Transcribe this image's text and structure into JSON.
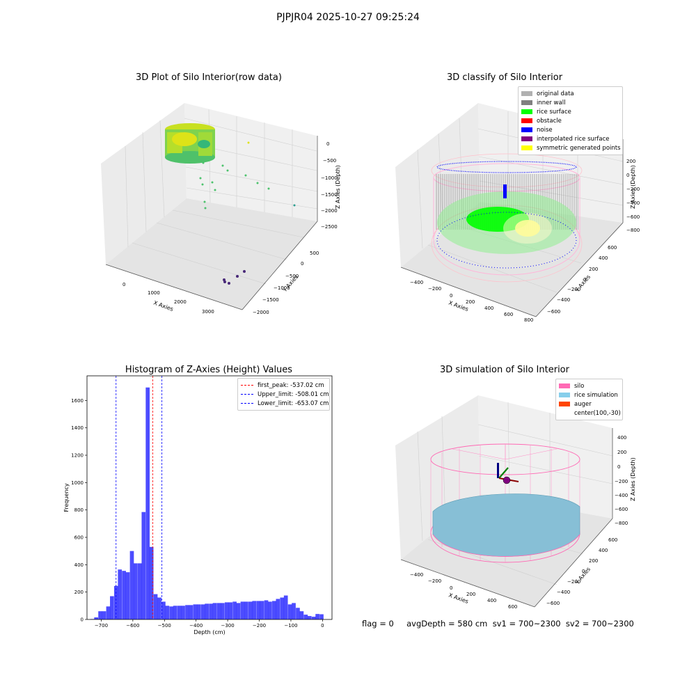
{
  "figure": {
    "suptitle": "PJPJR04 2025-10-27 09:25:24",
    "bottom_info": "flag = 0     avgDepth = 580 cm  sv1 = 700~2300  sv2 = 700~2300"
  },
  "chart_data": [
    {
      "type": "scatter",
      "title": "3D Plot of Silo Interior(row data)",
      "xlabel": "X Axies",
      "ylabel": "Y Axies",
      "zlabel": "Z Axies (Depth)",
      "x_ticks": [
        "0",
        "1000",
        "2000",
        "3000"
      ],
      "y_ticks": [
        "500",
        "0",
        "−500",
        "−1000",
        "−1500",
        "−2000"
      ],
      "z_ticks": [
        "0",
        "−500",
        "−1000",
        "−1500",
        "−2000",
        "−2500"
      ],
      "colormap": "viridis",
      "description_points": "dense cylindrical cluster of points near x≈500, sparse outlier points extending to x≈3500, z≈-2800"
    },
    {
      "type": "scatter",
      "title": "3D classify of Silo Interior",
      "xlabel": "X Axies",
      "ylabel": "Y Axies",
      "zlabel": "Z Axies (Depth)",
      "x_ticks": [
        "−400",
        "−200",
        "0",
        "200",
        "400",
        "600",
        "800"
      ],
      "y_ticks": [
        "600",
        "400",
        "200",
        "0",
        "−200",
        "−400",
        "−600"
      ],
      "z_ticks": [
        "200",
        "0",
        "−200",
        "−400",
        "−600",
        "−800"
      ],
      "legend": [
        {
          "label": "original data",
          "color": "#b0b0b0"
        },
        {
          "label": "inner wall",
          "color": "#808080"
        },
        {
          "label": "rice surface",
          "color": "#00ff00"
        },
        {
          "label": "obstacle",
          "color": "#ff0000"
        },
        {
          "label": "noise",
          "color": "#0000ff"
        },
        {
          "label": "interpolated rice surface",
          "color": "#800080"
        },
        {
          "label": "symmetric generated points",
          "color": "#ffff00"
        }
      ]
    },
    {
      "type": "bar",
      "title": "Histogram of Z-Axies (Height) Values",
      "xlabel": "Depth (cm)",
      "ylabel": "Frequency",
      "xlim": [
        -745,
        30
      ],
      "ylim": [
        0,
        1780
      ],
      "x_ticks": [
        -700,
        -600,
        -500,
        -400,
        -300,
        -200,
        -100,
        0
      ],
      "y_ticks": [
        0,
        200,
        400,
        600,
        800,
        1000,
        1200,
        1400,
        1600
      ],
      "bar_color": "#0000ff",
      "bin_width": 12.5,
      "bins": [
        {
          "x": -728,
          "y": 3
        },
        {
          "x": -716,
          "y": 15
        },
        {
          "x": -703,
          "y": 60
        },
        {
          "x": -691,
          "y": 60
        },
        {
          "x": -678,
          "y": 95
        },
        {
          "x": -666,
          "y": 170
        },
        {
          "x": -653,
          "y": 245
        },
        {
          "x": -641,
          "y": 365
        },
        {
          "x": -628,
          "y": 355
        },
        {
          "x": -616,
          "y": 345
        },
        {
          "x": -603,
          "y": 500
        },
        {
          "x": -591,
          "y": 410
        },
        {
          "x": -578,
          "y": 410
        },
        {
          "x": -566,
          "y": 785
        },
        {
          "x": -553,
          "y": 1695
        },
        {
          "x": -541,
          "y": 530
        },
        {
          "x": -528,
          "y": 185
        },
        {
          "x": -516,
          "y": 160
        },
        {
          "x": -503,
          "y": 130
        },
        {
          "x": -491,
          "y": 100
        },
        {
          "x": -478,
          "y": 95
        },
        {
          "x": -466,
          "y": 100
        },
        {
          "x": -453,
          "y": 100
        },
        {
          "x": -441,
          "y": 100
        },
        {
          "x": -428,
          "y": 105
        },
        {
          "x": -416,
          "y": 105
        },
        {
          "x": -403,
          "y": 110
        },
        {
          "x": -391,
          "y": 110
        },
        {
          "x": -378,
          "y": 110
        },
        {
          "x": -366,
          "y": 115
        },
        {
          "x": -353,
          "y": 115
        },
        {
          "x": -341,
          "y": 120
        },
        {
          "x": -328,
          "y": 120
        },
        {
          "x": -316,
          "y": 120
        },
        {
          "x": -303,
          "y": 125
        },
        {
          "x": -291,
          "y": 125
        },
        {
          "x": -278,
          "y": 130
        },
        {
          "x": -266,
          "y": 120
        },
        {
          "x": -253,
          "y": 130
        },
        {
          "x": -241,
          "y": 130
        },
        {
          "x": -228,
          "y": 130
        },
        {
          "x": -216,
          "y": 135
        },
        {
          "x": -203,
          "y": 135
        },
        {
          "x": -191,
          "y": 135
        },
        {
          "x": -178,
          "y": 140
        },
        {
          "x": -166,
          "y": 130
        },
        {
          "x": -153,
          "y": 135
        },
        {
          "x": -141,
          "y": 150
        },
        {
          "x": -128,
          "y": 160
        },
        {
          "x": -116,
          "y": 175
        },
        {
          "x": -103,
          "y": 110
        },
        {
          "x": -91,
          "y": 120
        },
        {
          "x": -78,
          "y": 85
        },
        {
          "x": -66,
          "y": 60
        },
        {
          "x": -53,
          "y": 35
        },
        {
          "x": -41,
          "y": 25
        },
        {
          "x": -28,
          "y": 20
        },
        {
          "x": -16,
          "y": 40
        },
        {
          "x": -3,
          "y": 38
        }
      ],
      "vlines": [
        {
          "x": -537.02,
          "color": "#ff0000",
          "label": "first_peak: -537.02 cm"
        },
        {
          "x": -508.01,
          "color": "#0000ff",
          "label": "Upper_limit: -508.01 cm"
        },
        {
          "x": -653.07,
          "color": "#0000ff",
          "label": "Lower_limit: -653.07 cm"
        }
      ],
      "legend_loc": "upper right"
    },
    {
      "type": "scatter",
      "title": "3D simulation of Silo Interior",
      "xlabel": "X Axies",
      "ylabel": "Y Axies",
      "zlabel": "Z Axies (Depth)",
      "x_ticks": [
        "−400",
        "−200",
        "0",
        "200",
        "400",
        "600"
      ],
      "y_ticks": [
        "600",
        "400",
        "200",
        "0",
        "−200",
        "−400",
        "−600"
      ],
      "z_ticks": [
        "400",
        "200",
        "0",
        "−200",
        "−400",
        "−600",
        "−800"
      ],
      "legend": [
        {
          "label": "silo",
          "color": "#ff69b4"
        },
        {
          "label": "rice simulation",
          "color": "#87ceeb"
        },
        {
          "label": "auger",
          "color": "#ff4500"
        },
        {
          "label": "center(100,-30)",
          "color": ""
        }
      ]
    }
  ]
}
